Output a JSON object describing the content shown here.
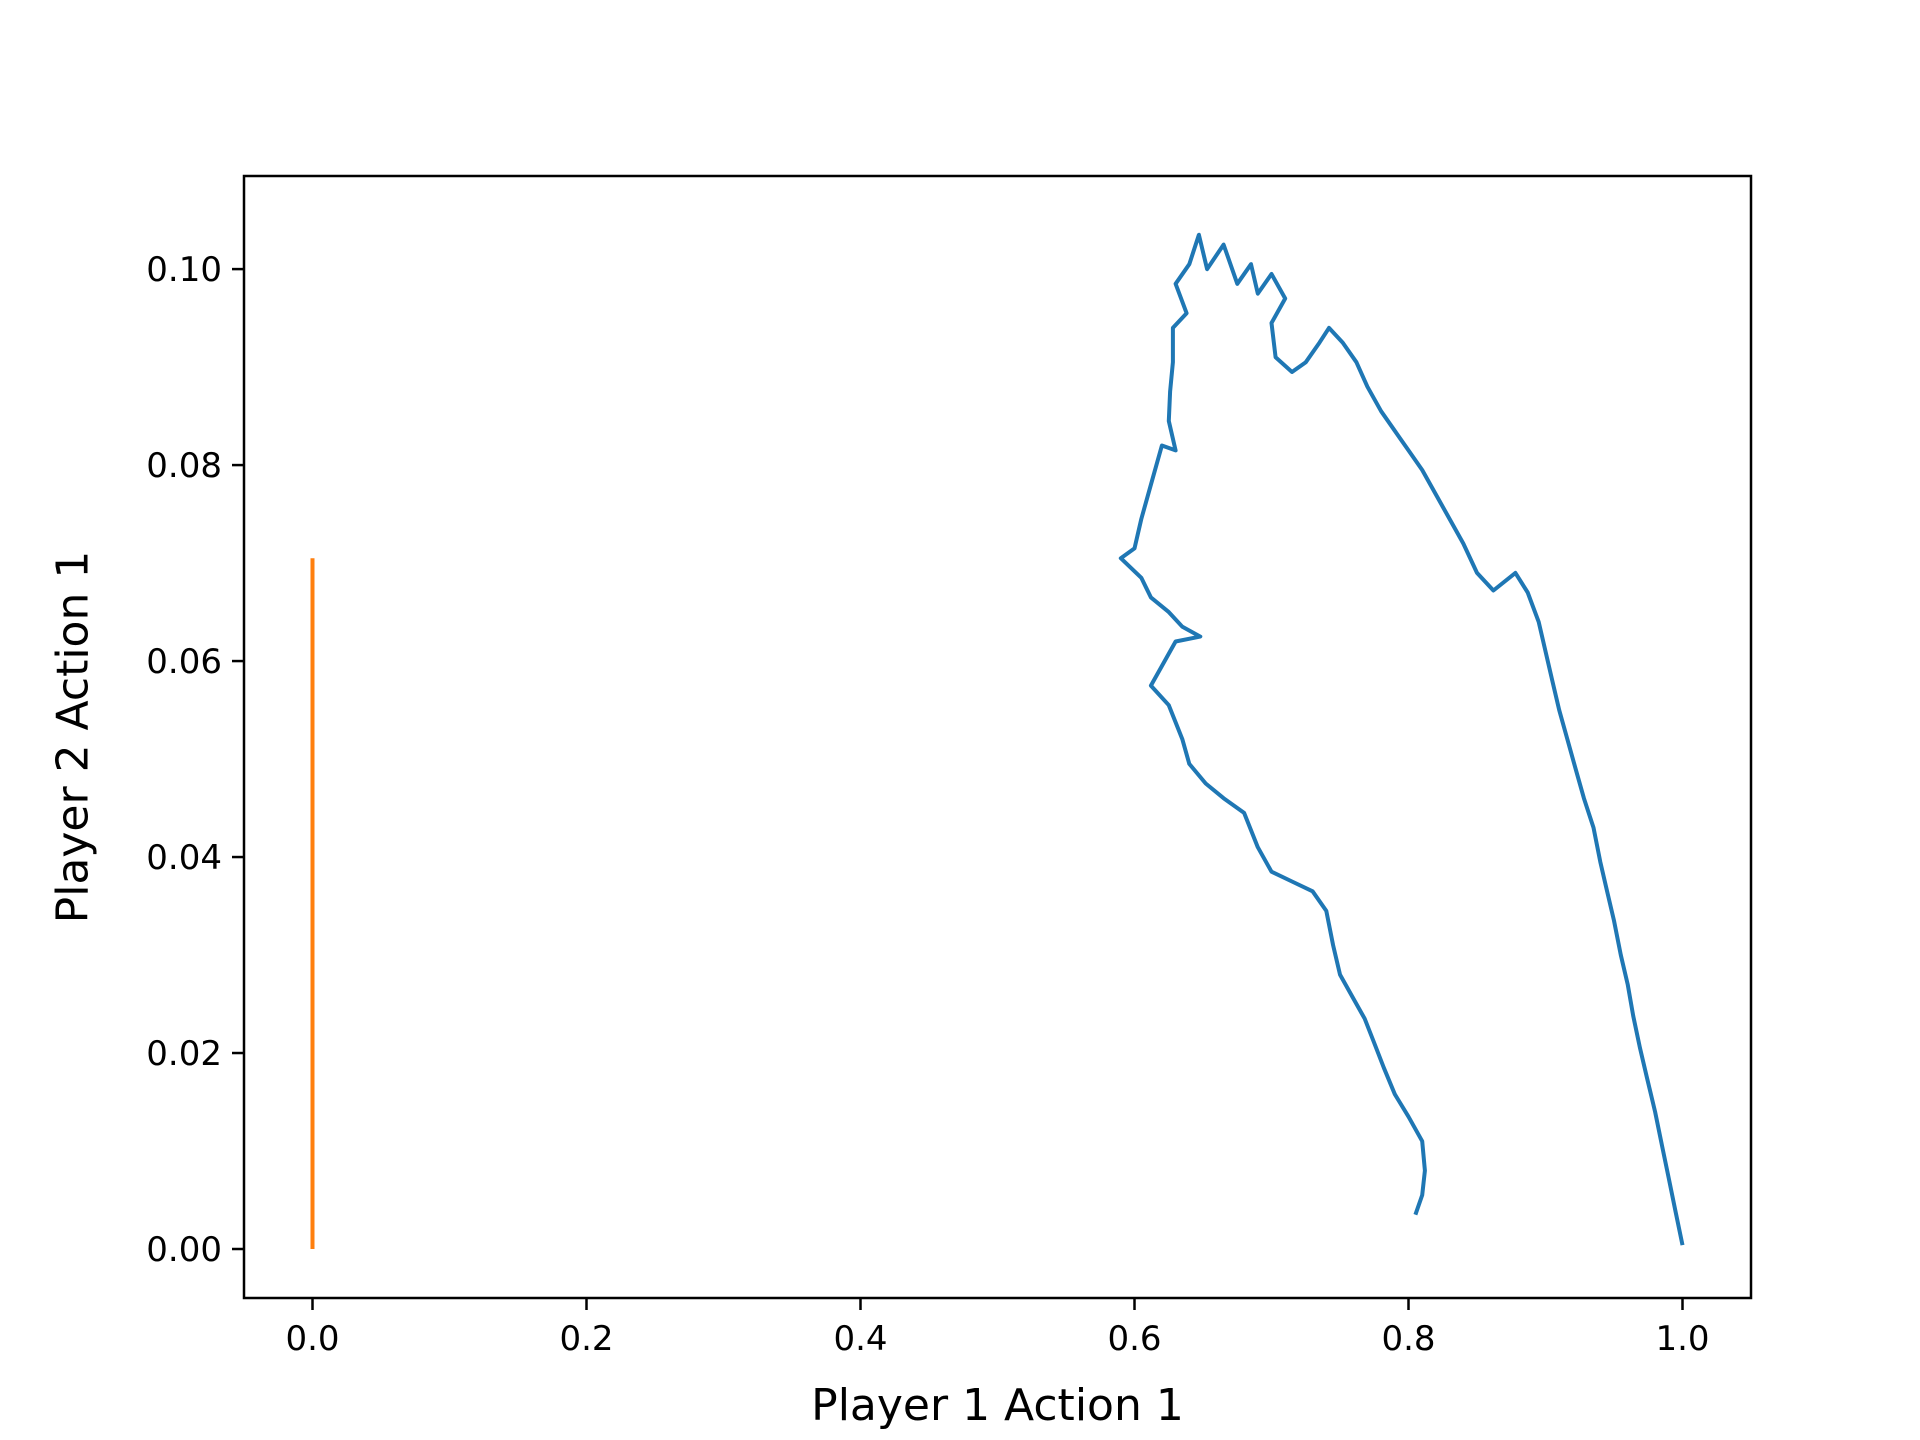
{
  "chart_data": {
    "type": "line",
    "title": "",
    "xlabel": "Player 1 Action 1",
    "ylabel": "Player 2 Action 1",
    "xlim": [
      -0.05,
      1.05
    ],
    "ylim": [
      -0.005,
      0.1095
    ],
    "grid": false,
    "legend": "none",
    "x_ticks": [
      0.0,
      0.2,
      0.4,
      0.6,
      0.8,
      1.0
    ],
    "x_tick_labels": [
      "0.0",
      "0.2",
      "0.4",
      "0.6",
      "0.8",
      "1.0"
    ],
    "y_ticks": [
      0.0,
      0.02,
      0.04,
      0.06,
      0.08,
      0.1
    ],
    "y_tick_labels": [
      "0.00",
      "0.02",
      "0.04",
      "0.06",
      "0.08",
      "0.10"
    ],
    "series": [
      {
        "color": "#1f77b4",
        "points": [
          [
            1.0,
            0.0004
          ],
          [
            0.995,
            0.0038
          ],
          [
            0.99,
            0.0072
          ],
          [
            0.985,
            0.0106
          ],
          [
            0.98,
            0.014
          ],
          [
            0.974,
            0.0175
          ],
          [
            0.969,
            0.0205
          ],
          [
            0.964,
            0.0238
          ],
          [
            0.96,
            0.027
          ],
          [
            0.955,
            0.03
          ],
          [
            0.95,
            0.0335
          ],
          [
            0.945,
            0.0365
          ],
          [
            0.94,
            0.0395
          ],
          [
            0.935,
            0.043
          ],
          [
            0.928,
            0.046
          ],
          [
            0.922,
            0.049
          ],
          [
            0.916,
            0.052
          ],
          [
            0.91,
            0.055
          ],
          [
            0.905,
            0.058
          ],
          [
            0.9,
            0.061
          ],
          [
            0.895,
            0.064
          ],
          [
            0.887,
            0.067
          ],
          [
            0.878,
            0.069
          ],
          [
            0.862,
            0.0672
          ],
          [
            0.85,
            0.069
          ],
          [
            0.84,
            0.072
          ],
          [
            0.83,
            0.0745
          ],
          [
            0.82,
            0.077
          ],
          [
            0.81,
            0.0795
          ],
          [
            0.8,
            0.0815
          ],
          [
            0.79,
            0.0835
          ],
          [
            0.78,
            0.0855
          ],
          [
            0.77,
            0.088
          ],
          [
            0.762,
            0.0905
          ],
          [
            0.752,
            0.0925
          ],
          [
            0.742,
            0.094
          ],
          [
            0.735,
            0.0925
          ],
          [
            0.725,
            0.0905
          ],
          [
            0.715,
            0.0895
          ],
          [
            0.703,
            0.091
          ],
          [
            0.7,
            0.0945
          ],
          [
            0.71,
            0.097
          ],
          [
            0.7,
            0.0995
          ],
          [
            0.69,
            0.0975
          ],
          [
            0.685,
            0.1005
          ],
          [
            0.675,
            0.0985
          ],
          [
            0.665,
            0.1025
          ],
          [
            0.653,
            0.1
          ],
          [
            0.647,
            0.1035
          ],
          [
            0.64,
            0.1005
          ],
          [
            0.63,
            0.0985
          ],
          [
            0.638,
            0.0955
          ],
          [
            0.628,
            0.094
          ],
          [
            0.628,
            0.0905
          ],
          [
            0.626,
            0.0875
          ],
          [
            0.625,
            0.0845
          ],
          [
            0.63,
            0.0815
          ],
          [
            0.62,
            0.082
          ],
          [
            0.612,
            0.078
          ],
          [
            0.605,
            0.0745
          ],
          [
            0.6,
            0.0715
          ],
          [
            0.59,
            0.0705
          ],
          [
            0.605,
            0.0685
          ],
          [
            0.612,
            0.0665
          ],
          [
            0.625,
            0.065
          ],
          [
            0.635,
            0.0635
          ],
          [
            0.648,
            0.0625
          ],
          [
            0.63,
            0.062
          ],
          [
            0.62,
            0.0595
          ],
          [
            0.612,
            0.0575
          ],
          [
            0.625,
            0.0555
          ],
          [
            0.635,
            0.052
          ],
          [
            0.64,
            0.0495
          ],
          [
            0.652,
            0.0475
          ],
          [
            0.665,
            0.046
          ],
          [
            0.68,
            0.0445
          ],
          [
            0.69,
            0.041
          ],
          [
            0.7,
            0.0385
          ],
          [
            0.715,
            0.0375
          ],
          [
            0.73,
            0.0365
          ],
          [
            0.74,
            0.0345
          ],
          [
            0.745,
            0.031
          ],
          [
            0.75,
            0.028
          ],
          [
            0.76,
            0.0255
          ],
          [
            0.768,
            0.0235
          ],
          [
            0.775,
            0.021
          ],
          [
            0.782,
            0.0185
          ],
          [
            0.79,
            0.0158
          ],
          [
            0.8,
            0.0135
          ],
          [
            0.81,
            0.011
          ],
          [
            0.812,
            0.008
          ],
          [
            0.81,
            0.0055
          ],
          [
            0.805,
            0.0035
          ]
        ]
      },
      {
        "color": "#ff7f0e",
        "points": [
          [
            0.0,
            0.0
          ],
          [
            0.0,
            0.005
          ],
          [
            0.0,
            0.01
          ],
          [
            0.0,
            0.015
          ],
          [
            0.0,
            0.02
          ],
          [
            0.0,
            0.025
          ],
          [
            0.0,
            0.03
          ],
          [
            0.0,
            0.035
          ],
          [
            0.0,
            0.04
          ],
          [
            0.0,
            0.045
          ],
          [
            0.0,
            0.05
          ],
          [
            0.0,
            0.055
          ],
          [
            0.0,
            0.06
          ],
          [
            0.0,
            0.065
          ],
          [
            0.0,
            0.0705
          ]
        ]
      }
    ]
  }
}
